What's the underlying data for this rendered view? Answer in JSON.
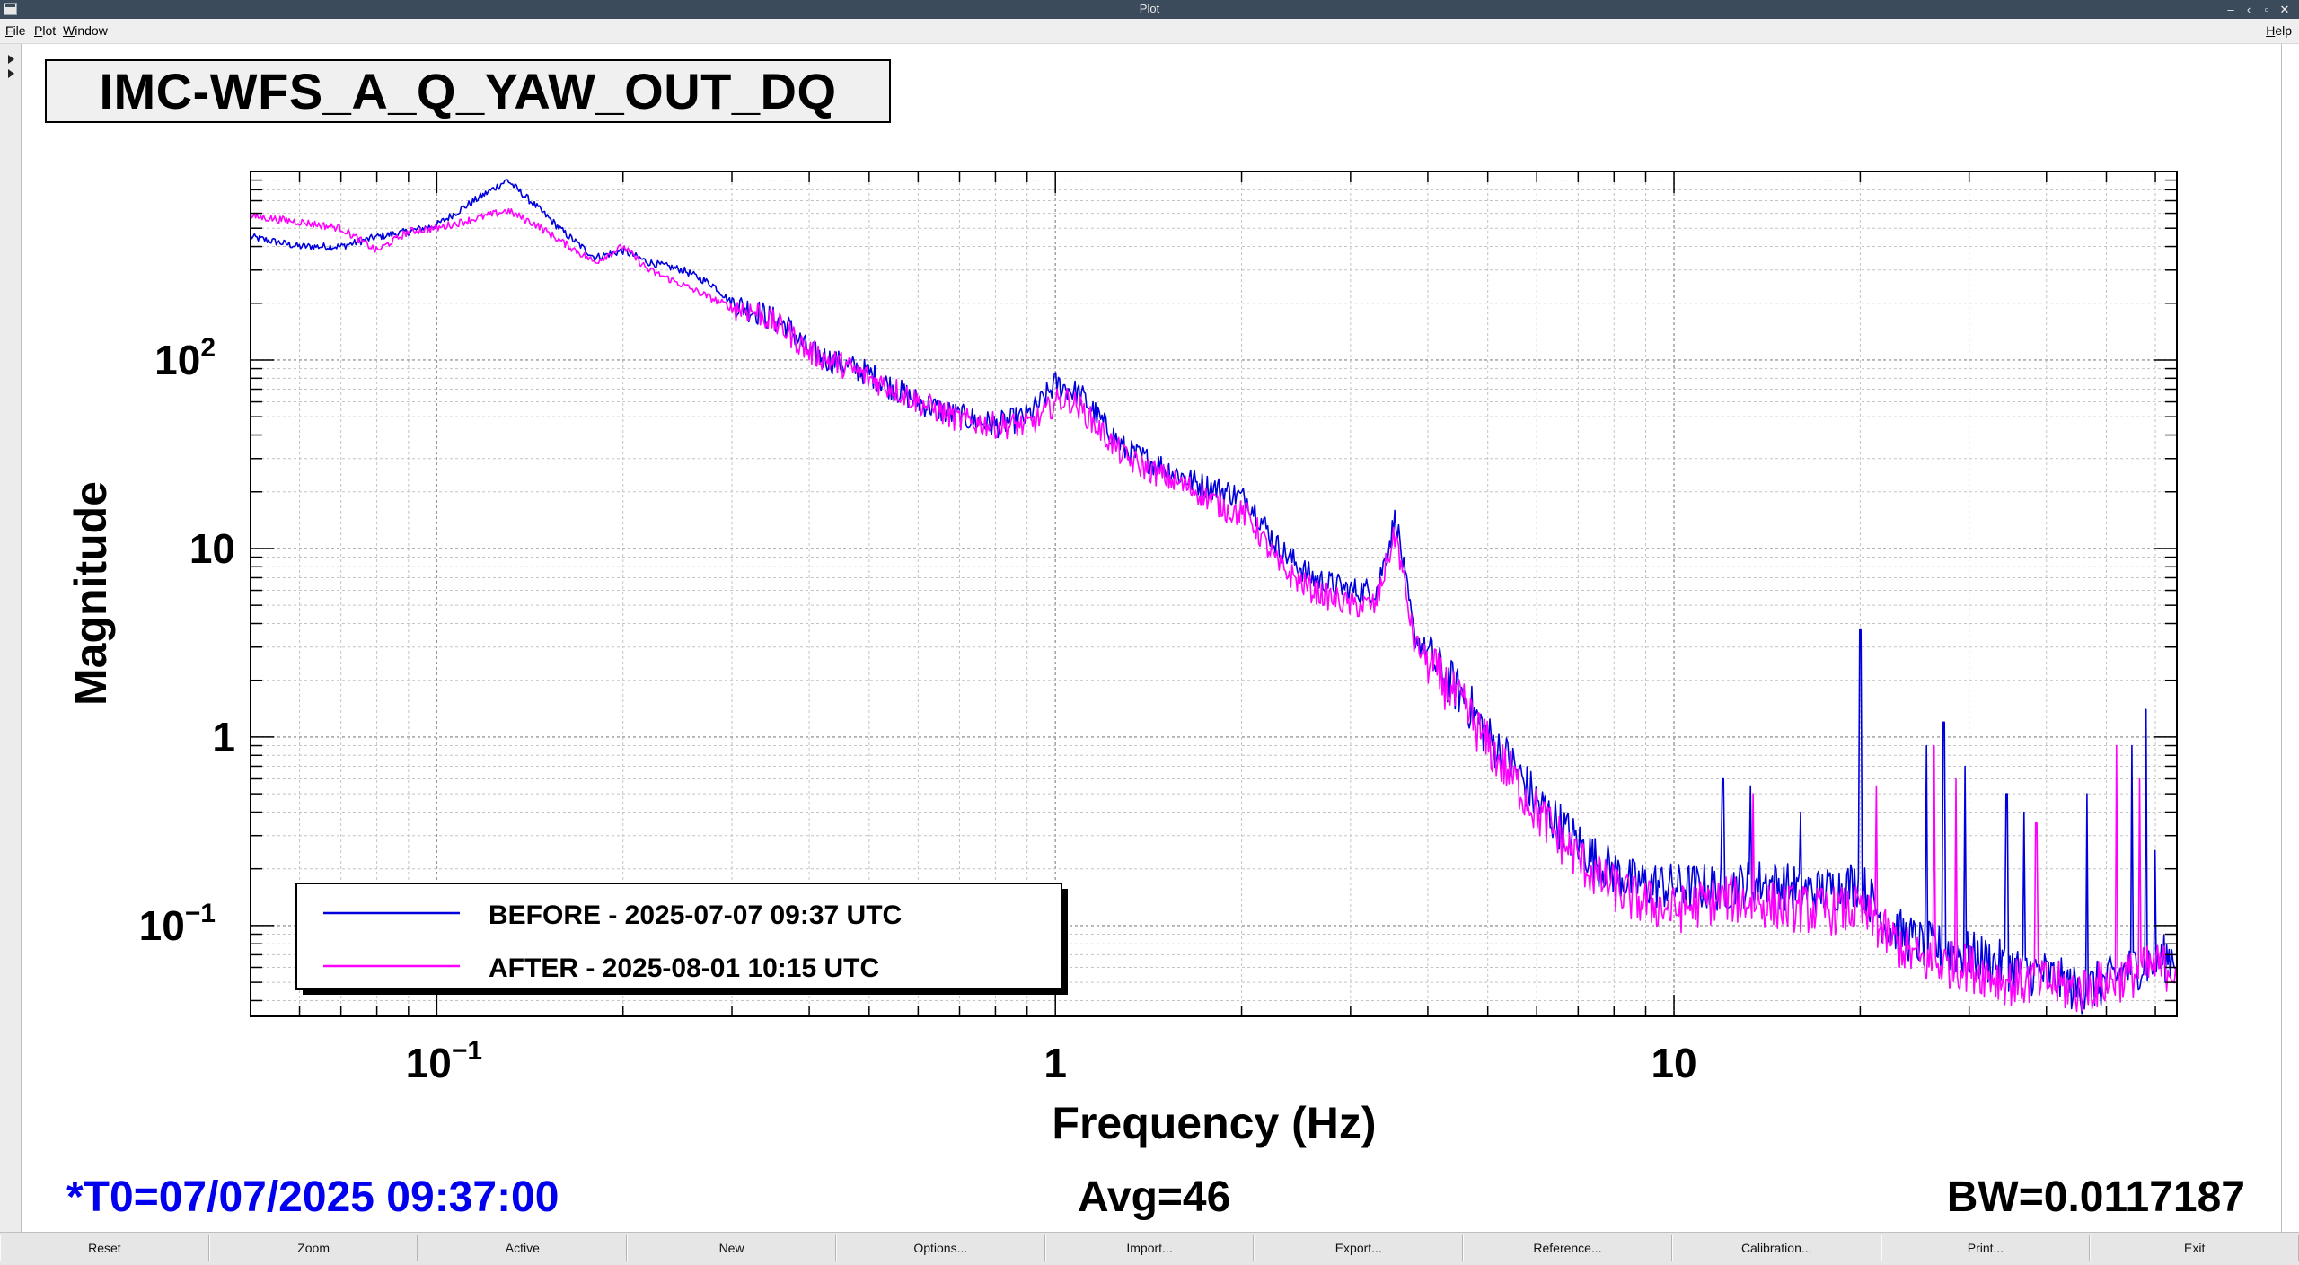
{
  "window": {
    "title": "Plot",
    "controls": [
      "minimize-icon",
      "restore-icon",
      "maximize-icon",
      "close-icon"
    ]
  },
  "menu": {
    "file": "File",
    "plot": "Plot",
    "window": "Window",
    "help": "Help"
  },
  "plot_title": "IMC-WFS_A_Q_YAW_OUT_DQ",
  "chart_data": {
    "type": "line",
    "title": "IMC-WFS_A_Q_YAW_OUT_DQ",
    "xlabel": "Frequency (Hz)",
    "ylabel": "Magnitude",
    "xscale": "log",
    "yscale": "log",
    "xlim": [
      0.05,
      65
    ],
    "ylim": [
      0.033,
      1000
    ],
    "grid": true,
    "legend_position": "bottom-left",
    "x_tick_labels": [
      {
        "value": 0.1,
        "mantissa": "10",
        "exponent": "−1"
      },
      {
        "value": 1,
        "mantissa": "1",
        "exponent": ""
      },
      {
        "value": 10,
        "mantissa": "10",
        "exponent": ""
      }
    ],
    "y_tick_labels": [
      {
        "value": 100,
        "mantissa": "10",
        "exponent": "2"
      },
      {
        "value": 10,
        "mantissa": "10",
        "exponent": ""
      },
      {
        "value": 1,
        "mantissa": "1",
        "exponent": ""
      },
      {
        "value": 0.1,
        "mantissa": "10",
        "exponent": "−1"
      }
    ],
    "series": [
      {
        "name": "BEFORE - 2025-07-07 09:37 UTC",
        "color": "#0000dd",
        "points": [
          [
            0.05,
            450
          ],
          [
            0.06,
            400
          ],
          [
            0.07,
            400
          ],
          [
            0.08,
            450
          ],
          [
            0.09,
            480
          ],
          [
            0.1,
            520
          ],
          [
            0.115,
            700
          ],
          [
            0.13,
            900
          ],
          [
            0.145,
            650
          ],
          [
            0.16,
            480
          ],
          [
            0.18,
            350
          ],
          [
            0.2,
            380
          ],
          [
            0.22,
            330
          ],
          [
            0.25,
            300
          ],
          [
            0.28,
            250
          ],
          [
            0.3,
            200
          ],
          [
            0.33,
            180
          ],
          [
            0.37,
            150
          ],
          [
            0.4,
            110
          ],
          [
            0.45,
            95
          ],
          [
            0.5,
            85
          ],
          [
            0.55,
            70
          ],
          [
            0.6,
            60
          ],
          [
            0.7,
            50
          ],
          [
            0.8,
            45
          ],
          [
            0.9,
            50
          ],
          [
            0.95,
            60
          ],
          [
            1.0,
            75
          ],
          [
            1.05,
            70
          ],
          [
            1.1,
            65
          ],
          [
            1.2,
            45
          ],
          [
            1.3,
            33
          ],
          [
            1.5,
            27
          ],
          [
            1.7,
            22
          ],
          [
            1.9,
            20
          ],
          [
            2.05,
            18
          ],
          [
            2.3,
            10
          ],
          [
            2.6,
            7
          ],
          [
            3.0,
            6
          ],
          [
            3.3,
            6
          ],
          [
            3.45,
            10
          ],
          [
            3.55,
            15
          ],
          [
            3.65,
            8
          ],
          [
            3.8,
            3.5
          ],
          [
            4.2,
            2.2
          ],
          [
            4.6,
            1.6
          ],
          [
            5.0,
            1.0
          ],
          [
            5.5,
            0.7
          ],
          [
            6.0,
            0.45
          ],
          [
            6.8,
            0.3
          ],
          [
            7.5,
            0.22
          ],
          [
            8.5,
            0.17
          ],
          [
            10,
            0.16
          ],
          [
            12,
            0.16
          ],
          [
            14,
            0.17
          ],
          [
            17,
            0.15
          ],
          [
            20,
            0.17
          ],
          [
            22,
            0.1
          ],
          [
            25,
            0.08
          ],
          [
            30,
            0.07
          ],
          [
            35,
            0.06
          ],
          [
            40,
            0.055
          ],
          [
            45,
            0.045
          ],
          [
            50,
            0.05
          ],
          [
            55,
            0.06
          ],
          [
            60,
            0.065
          ],
          [
            65,
            0.07
          ]
        ],
        "spikes": [
          [
            12,
            0.6
          ],
          [
            13.3,
            0.55
          ],
          [
            16,
            0.4
          ],
          [
            20,
            3.7
          ],
          [
            25.6,
            0.9
          ],
          [
            27.3,
            1.2
          ],
          [
            29.5,
            0.7
          ],
          [
            34.5,
            0.5
          ],
          [
            36.8,
            0.4
          ],
          [
            46.5,
            0.5
          ],
          [
            55,
            0.9
          ],
          [
            58,
            1.4
          ],
          [
            60,
            0.25
          ]
        ]
      },
      {
        "name": "AFTER - 2025-08-01 10:15 UTC",
        "color": "#ff00ff",
        "points": [
          [
            0.05,
            580
          ],
          [
            0.06,
            540
          ],
          [
            0.07,
            500
          ],
          [
            0.08,
            380
          ],
          [
            0.09,
            480
          ],
          [
            0.1,
            500
          ],
          [
            0.115,
            560
          ],
          [
            0.13,
            620
          ],
          [
            0.145,
            520
          ],
          [
            0.16,
            420
          ],
          [
            0.18,
            330
          ],
          [
            0.2,
            400
          ],
          [
            0.22,
            300
          ],
          [
            0.25,
            250
          ],
          [
            0.28,
            210
          ],
          [
            0.3,
            190
          ],
          [
            0.33,
            180
          ],
          [
            0.37,
            140
          ],
          [
            0.4,
            110
          ],
          [
            0.45,
            95
          ],
          [
            0.5,
            80
          ],
          [
            0.55,
            70
          ],
          [
            0.6,
            60
          ],
          [
            0.7,
            48
          ],
          [
            0.8,
            45
          ],
          [
            0.9,
            45
          ],
          [
            0.95,
            50
          ],
          [
            1.0,
            60
          ],
          [
            1.05,
            62
          ],
          [
            1.1,
            55
          ],
          [
            1.2,
            40
          ],
          [
            1.3,
            30
          ],
          [
            1.5,
            24
          ],
          [
            1.7,
            20
          ],
          [
            1.9,
            16
          ],
          [
            2.05,
            15
          ],
          [
            2.3,
            8
          ],
          [
            2.6,
            6
          ],
          [
            3.0,
            5
          ],
          [
            3.3,
            5
          ],
          [
            3.45,
            9
          ],
          [
            3.55,
            12
          ],
          [
            3.65,
            7
          ],
          [
            3.8,
            3.2
          ],
          [
            4.2,
            2.0
          ],
          [
            4.6,
            1.4
          ],
          [
            5.0,
            0.9
          ],
          [
            5.5,
            0.6
          ],
          [
            6.0,
            0.4
          ],
          [
            6.8,
            0.25
          ],
          [
            7.5,
            0.18
          ],
          [
            8.5,
            0.14
          ],
          [
            10,
            0.12
          ],
          [
            12,
            0.14
          ],
          [
            14,
            0.13
          ],
          [
            17,
            0.12
          ],
          [
            20,
            0.12
          ],
          [
            22,
            0.09
          ],
          [
            25,
            0.065
          ],
          [
            30,
            0.06
          ],
          [
            35,
            0.05
          ],
          [
            40,
            0.05
          ],
          [
            45,
            0.045
          ],
          [
            50,
            0.05
          ],
          [
            55,
            0.055
          ],
          [
            60,
            0.06
          ],
          [
            65,
            0.06
          ]
        ],
        "spikes": [
          [
            13.4,
            0.5
          ],
          [
            21.2,
            0.55
          ],
          [
            26.3,
            0.9
          ],
          [
            28.6,
            0.6
          ],
          [
            38.5,
            0.35
          ],
          [
            52,
            0.9
          ],
          [
            56.5,
            0.6
          ]
        ]
      }
    ]
  },
  "info": {
    "t0": "*T0=07/07/2025 09:37:00",
    "avg": "Avg=46",
    "bw": "BW=0.0117187"
  },
  "buttons": [
    "Reset",
    "Zoom",
    "Active",
    "New",
    "Options...",
    "Import...",
    "Export...",
    "Reference...",
    "Calibration...",
    "Print...",
    "Exit"
  ]
}
